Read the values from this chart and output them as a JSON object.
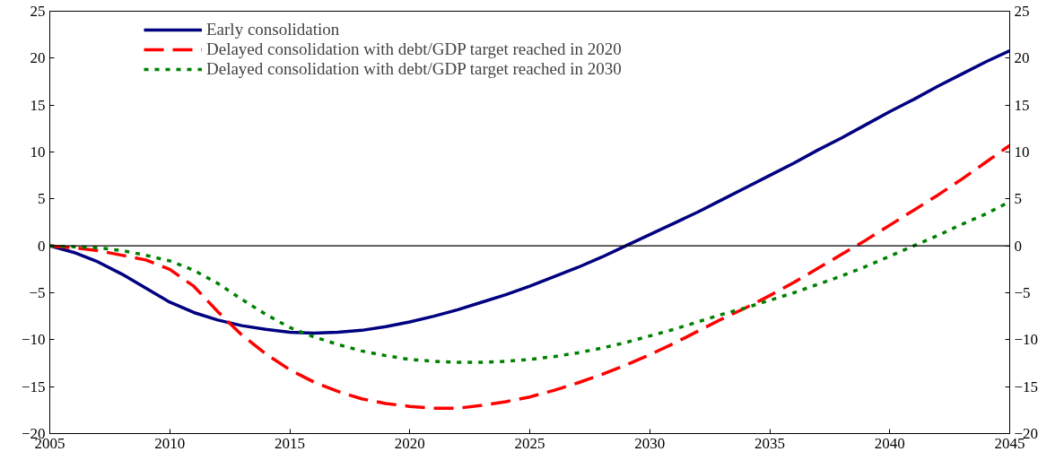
{
  "chart_data": {
    "type": "line",
    "x": [
      2005,
      2006,
      2007,
      2008,
      2009,
      2010,
      2011,
      2012,
      2013,
      2014,
      2015,
      2016,
      2017,
      2018,
      2019,
      2020,
      2021,
      2022,
      2023,
      2024,
      2025,
      2026,
      2027,
      2028,
      2029,
      2030,
      2031,
      2032,
      2033,
      2034,
      2035,
      2036,
      2037,
      2038,
      2039,
      2040,
      2041,
      2042,
      2043,
      2044,
      2045
    ],
    "series": [
      {
        "name": "Early consolidation",
        "color": "#000080",
        "line_style": "solid",
        "values": [
          0,
          -0.7,
          -1.7,
          -3,
          -4.5,
          -6,
          -7.1,
          -7.9,
          -8.5,
          -8.9,
          -9.2,
          -9.3,
          -9.2,
          -9.0,
          -8.6,
          -8.1,
          -7.5,
          -6.8,
          -6.0,
          -5.2,
          -4.3,
          -3.3,
          -2.3,
          -1.2,
          0,
          1.2,
          2.4,
          3.6,
          4.9,
          6.2,
          7.5,
          8.8,
          10.2,
          11.5,
          12.9,
          14.3,
          15.6,
          17,
          18.3,
          19.6,
          20.8
        ]
      },
      {
        "name": "Delayed consolidation with debt/GDP target reached in 2020",
        "color": "#ff0000",
        "line_style": "dashed",
        "values": [
          0,
          -0.2,
          -0.5,
          -1,
          -1.5,
          -2.5,
          -4.3,
          -7,
          -9.5,
          -11.5,
          -13.2,
          -14.5,
          -15.5,
          -16.3,
          -16.8,
          -17.1,
          -17.3,
          -17.3,
          -17.0,
          -16.6,
          -16.1,
          -15.4,
          -14.6,
          -13.7,
          -12.7,
          -11.6,
          -10.4,
          -9.1,
          -7.8,
          -6.6,
          -5.3,
          -3.9,
          -2.4,
          -0.9,
          0.6,
          2.2,
          3.8,
          5.4,
          7.1,
          8.9,
          10.7
        ]
      },
      {
        "name": "Delayed consolidation with debt/GDP target reached in 2030",
        "color": "#008000",
        "line_style": "dotted",
        "values": [
          0,
          -0.1,
          -0.2,
          -0.5,
          -1,
          -1.6,
          -2.6,
          -4,
          -5.7,
          -7.3,
          -8.7,
          -9.7,
          -10.5,
          -11.2,
          -11.7,
          -12.1,
          -12.3,
          -12.4,
          -12.4,
          -12.3,
          -12.1,
          -11.8,
          -11.4,
          -10.9,
          -10.3,
          -9.6,
          -8.9,
          -8.1,
          -7.3,
          -6.6,
          -5.8,
          -5.0,
          -4.1,
          -3.2,
          -2.2,
          -1.1,
          0,
          1.1,
          2.3,
          3.4,
          4.7
        ]
      }
    ],
    "xlim": [
      2005,
      2045
    ],
    "xticks": [
      2005,
      2010,
      2015,
      2020,
      2025,
      2030,
      2035,
      2040,
      2045
    ],
    "ylim": [
      -20,
      25
    ],
    "yticks": [
      -20,
      -15,
      -10,
      -5,
      0,
      5,
      10,
      15,
      20,
      25
    ],
    "y2lim": [
      -20,
      25
    ],
    "y2ticks": [
      -20,
      -15,
      -10,
      -5,
      0,
      5,
      10,
      15,
      20,
      25
    ],
    "ref_lines": [
      {
        "axis": "y",
        "value": 0,
        "color": "#000000"
      }
    ],
    "legend": "top left",
    "grid": false
  }
}
